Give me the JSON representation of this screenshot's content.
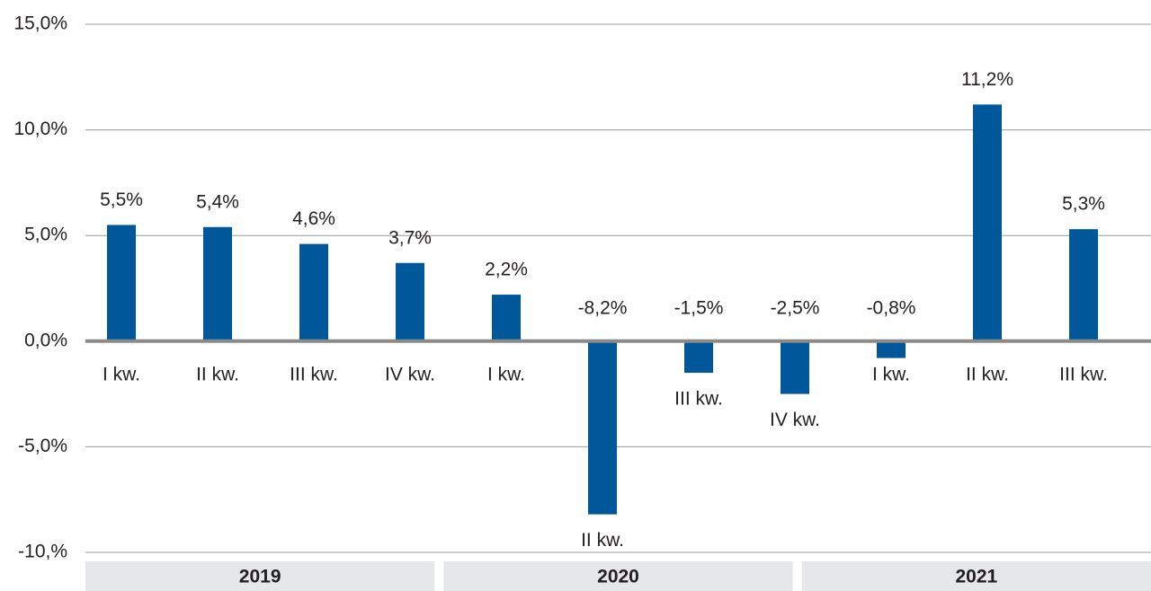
{
  "chart_data": {
    "type": "bar",
    "color": "#00589a",
    "grid": true,
    "ylim": [
      -10,
      15
    ],
    "yticks": [
      {
        "value": -10,
        "label": "-10,%"
      },
      {
        "value": -5,
        "label": "-5,0%"
      },
      {
        "value": 0,
        "label": "0,0%"
      },
      {
        "value": 5,
        "label": "5,0%"
      },
      {
        "value": 10,
        "label": "10,0%"
      },
      {
        "value": 15,
        "label": "15,0%"
      }
    ],
    "groups": [
      {
        "label": "2019",
        "categories": [
          "I kw.",
          "II kw.",
          "III kw.",
          "IV kw."
        ],
        "values": [
          5.5,
          5.4,
          4.6,
          3.7
        ],
        "value_labels": [
          "5,5%",
          "5,4%",
          "4,6%",
          "3,7%"
        ]
      },
      {
        "label": "2020",
        "categories": [
          "I kw.",
          "II kw.",
          "III kw.",
          "IV kw."
        ],
        "values": [
          2.2,
          -8.2,
          -1.5,
          -2.5
        ],
        "value_labels": [
          "2,2%",
          "-8,2%",
          "-1,5%",
          "-2,5%"
        ]
      },
      {
        "label": "2021",
        "categories": [
          "I kw.",
          "II kw.",
          "III kw."
        ],
        "values": [
          -0.8,
          11.2,
          5.3
        ],
        "value_labels": [
          "-0,8%",
          "11,2%",
          "5,3%"
        ]
      }
    ]
  }
}
